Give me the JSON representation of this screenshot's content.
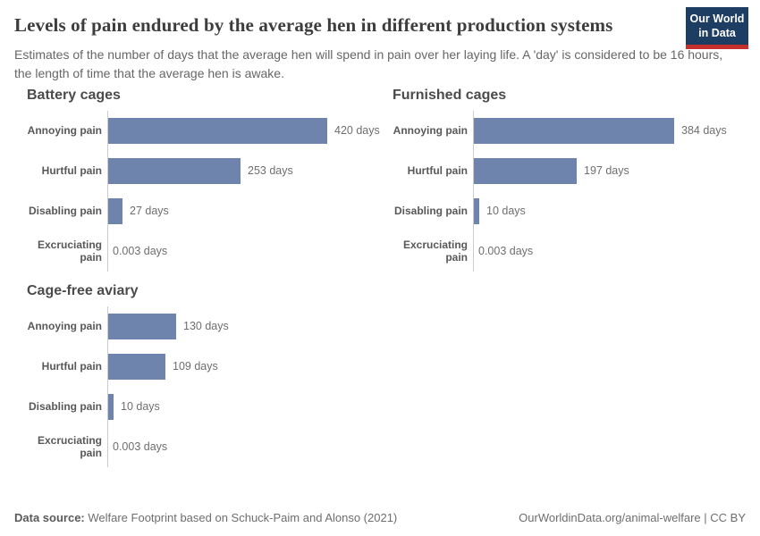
{
  "header": {
    "title": "Levels of pain endured by the average hen in different production systems",
    "subtitle": "Estimates of the number of days that the average hen will spend in pain over her laying life. A 'day' is considered to be 16 hours, the length of time that the average hen is awake.",
    "logo": {
      "line1": "Our World",
      "line2": "in Data"
    }
  },
  "chart_data": [
    {
      "type": "bar",
      "orientation": "horizontal",
      "title": "Battery cages",
      "categories": [
        "Annoying pain",
        "Hurtful pain",
        "Disabling pain",
        "Excruciating pain"
      ],
      "values": [
        420,
        253,
        27,
        0.003
      ],
      "value_labels": [
        "420 days",
        "253 days",
        "27 days",
        "0.003 days"
      ],
      "unit": "days",
      "xlim": [
        0,
        420
      ],
      "grid": false,
      "legend": "none"
    },
    {
      "type": "bar",
      "orientation": "horizontal",
      "title": "Furnished cages",
      "categories": [
        "Annoying pain",
        "Hurtful pain",
        "Disabling pain",
        "Excruciating pain"
      ],
      "values": [
        384,
        197,
        10,
        0.003
      ],
      "value_labels": [
        "384 days",
        "197 days",
        "10 days",
        "0.003 days"
      ],
      "unit": "days",
      "xlim": [
        0,
        420
      ],
      "grid": false,
      "legend": "none"
    },
    {
      "type": "bar",
      "orientation": "horizontal",
      "title": "Cage-free aviary",
      "categories": [
        "Annoying pain",
        "Hurtful pain",
        "Disabling pain",
        "Excruciating pain"
      ],
      "values": [
        130,
        109,
        10,
        0.003
      ],
      "value_labels": [
        "130 days",
        "109 days",
        "10 days",
        "0.003 days"
      ],
      "unit": "days",
      "xlim": [
        0,
        420
      ],
      "grid": false,
      "legend": "none"
    }
  ],
  "colors": {
    "bar": "#6e84ac",
    "axis_line": "#cccccc",
    "logo_background": "#1d3d63",
    "logo_stripe": "#c5302c",
    "title_text": "#3d3d3d"
  },
  "footer": {
    "datasource_label": "Data source:",
    "datasource_text": " Welfare Footprint based on Schuck-Paim and Alonso (2021)",
    "right_text": "OurWorldinData.org/animal-welfare | CC BY"
  }
}
